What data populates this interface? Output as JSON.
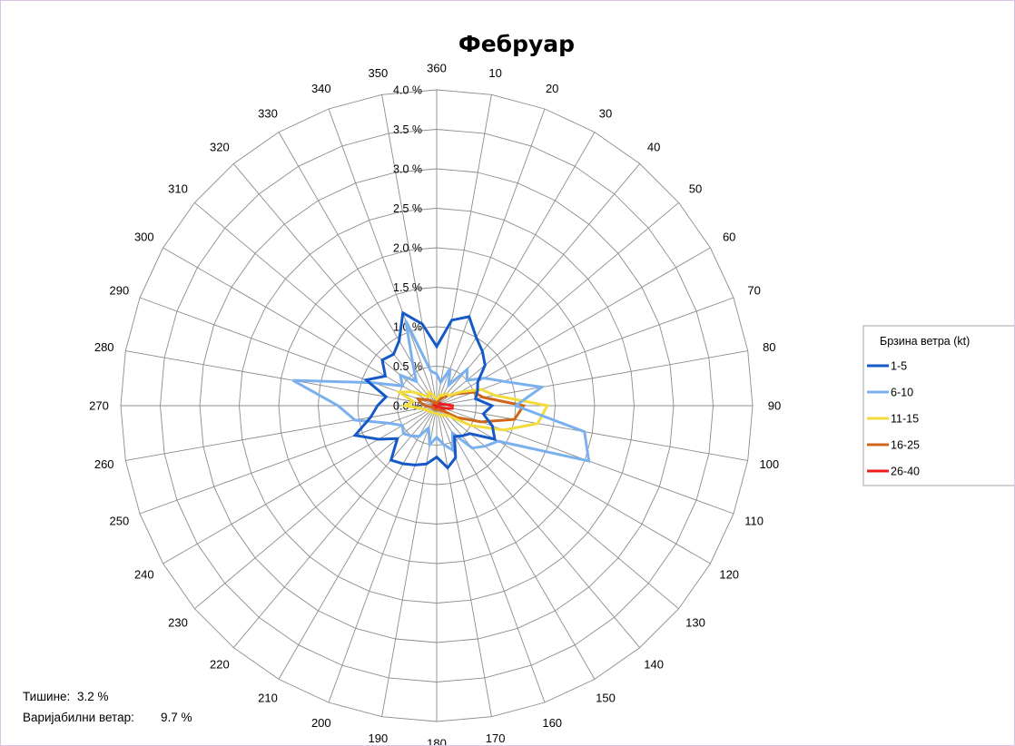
{
  "chart_data": {
    "type": "radar",
    "title": "Фебруар",
    "directions": [
      10,
      20,
      30,
      40,
      50,
      60,
      70,
      80,
      90,
      100,
      110,
      120,
      130,
      140,
      150,
      160,
      170,
      180,
      190,
      200,
      210,
      220,
      230,
      240,
      250,
      260,
      270,
      280,
      290,
      300,
      310,
      320,
      330,
      340,
      350,
      360
    ],
    "r_ticks": [
      "0.0 %",
      "0.5 %",
      "1.0 %",
      "1.5 %",
      "2.0 %",
      "2.5 %",
      "3.0 %",
      "3.5 %",
      "4.0 %"
    ],
    "rmax": 4.0,
    "legend": {
      "title": "Брзина ветра (kt)",
      "position": "right"
    },
    "series": [
      {
        "name": "1-5",
        "color": "#1558c7",
        "values": [
          1.1,
          1.2,
          1.0,
          0.9,
          0.8,
          0.6,
          0.55,
          0.5,
          0.7,
          0.6,
          0.75,
          0.85,
          0.55,
          0.5,
          0.45,
          0.7,
          0.8,
          0.65,
          0.75,
          0.8,
          0.85,
          0.9,
          0.65,
          0.85,
          1.1,
          0.85,
          0.75,
          0.65,
          0.95,
          0.75,
          0.9,
          0.85,
          0.95,
          1.25,
          1.05,
          0.75
        ]
      },
      {
        "name": "6-10",
        "color": "#7ab0ee",
        "values": [
          0.3,
          0.5,
          0.3,
          0.6,
          0.5,
          0.7,
          0.9,
          1.35,
          1.0,
          1.9,
          2.05,
          0.9,
          0.8,
          0.7,
          0.4,
          0.6,
          0.5,
          0.4,
          0.5,
          0.3,
          0.45,
          0.5,
          0.55,
          0.5,
          0.65,
          1.05,
          1.25,
          1.85,
          0.85,
          0.5,
          0.6,
          0.4,
          0.6,
          1.15,
          0.45,
          0.4
        ]
      },
      {
        "name": "11-15",
        "color": "#f2dc3c",
        "values": [
          0.1,
          0.15,
          0.15,
          0.2,
          0.2,
          0.35,
          0.6,
          0.75,
          1.4,
          1.3,
          0.9,
          0.5,
          0.2,
          0.15,
          0.15,
          0.12,
          0.1,
          0.1,
          0.1,
          0.1,
          0.1,
          0.1,
          0.12,
          0.12,
          0.15,
          0.2,
          0.4,
          0.3,
          0.5,
          0.35,
          0.2,
          0.15,
          0.2,
          0.15,
          0.1,
          0.08
        ]
      },
      {
        "name": "16-25",
        "color": "#d0651a",
        "values": [
          0.05,
          0.1,
          0.1,
          0.15,
          0.2,
          0.3,
          0.5,
          0.6,
          1.1,
          1.0,
          0.6,
          0.3,
          0.1,
          0.08,
          0.05,
          0.05,
          0.05,
          0.05,
          0.05,
          0.05,
          0.05,
          0.05,
          0.05,
          0.05,
          0.05,
          0.08,
          0.15,
          0.2,
          0.25,
          0.15,
          0.1,
          0.05,
          0.05,
          0.05,
          0.03,
          0.03
        ]
      },
      {
        "name": "26-40",
        "color": "#ee1c1c",
        "values": [
          0.02,
          0.02,
          0.02,
          0.03,
          0.05,
          0.05,
          0.05,
          0.1,
          0.2,
          0.2,
          0.1,
          0.05,
          0.02,
          0.02,
          0.02,
          0.02,
          0.02,
          0.02,
          0.02,
          0.02,
          0.02,
          0.02,
          0.02,
          0.02,
          0.02,
          0.02,
          0.03,
          0.03,
          0.05,
          0.03,
          0.02,
          0.02,
          0.02,
          0.02,
          0.02,
          0.02
        ]
      }
    ]
  },
  "footer": {
    "calm_label": "Тишине:",
    "calm_value": "3.2 %",
    "variable_label": "Варијабилни ветар:",
    "variable_value": "9.7 %"
  }
}
